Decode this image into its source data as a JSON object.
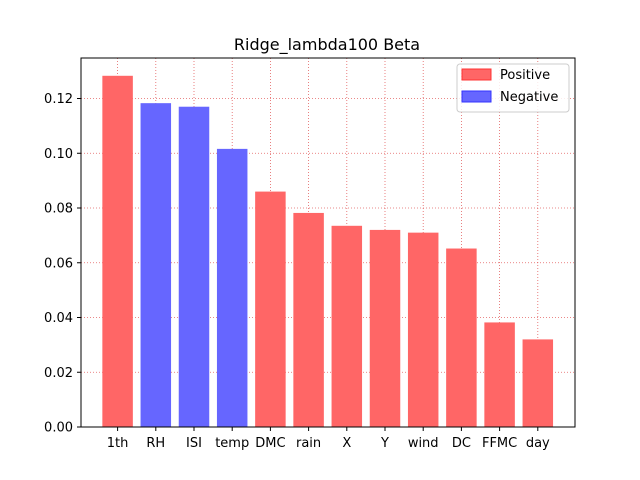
{
  "chart_data": {
    "type": "bar",
    "title": "Ridge_lambda100 Beta",
    "xlabel": "",
    "ylabel": "",
    "categories": [
      "1th",
      "RH",
      "ISI",
      "temp",
      "DMC",
      "rain",
      "X",
      "Y",
      "wind",
      "DC",
      "FFMC",
      "day"
    ],
    "values": [
      0.1283,
      0.1183,
      0.117,
      0.1016,
      0.086,
      0.0782,
      0.0735,
      0.072,
      0.071,
      0.0652,
      0.0382,
      0.032
    ],
    "signs": [
      "Positive",
      "Negative",
      "Negative",
      "Negative",
      "Positive",
      "Positive",
      "Positive",
      "Positive",
      "Positive",
      "Positive",
      "Positive",
      "Positive"
    ],
    "ylim": [
      0,
      0.1348
    ],
    "yticks": [
      "0.00",
      "0.02",
      "0.04",
      "0.06",
      "0.08",
      "0.10",
      "0.12"
    ],
    "ytick_values": [
      0,
      0.02,
      0.04,
      0.06,
      0.08,
      0.1,
      0.12
    ],
    "grid": true,
    "legend": {
      "position": "top-right",
      "entries": [
        {
          "label": "Positive",
          "color": "#ff6666",
          "edge": "#ff3333"
        },
        {
          "label": "Negative",
          "color": "#6666ff",
          "edge": "#3333ff"
        }
      ]
    },
    "colors": {
      "Positive": "#ff6666",
      "Negative": "#6666ff",
      "grid": "#e05050"
    }
  }
}
